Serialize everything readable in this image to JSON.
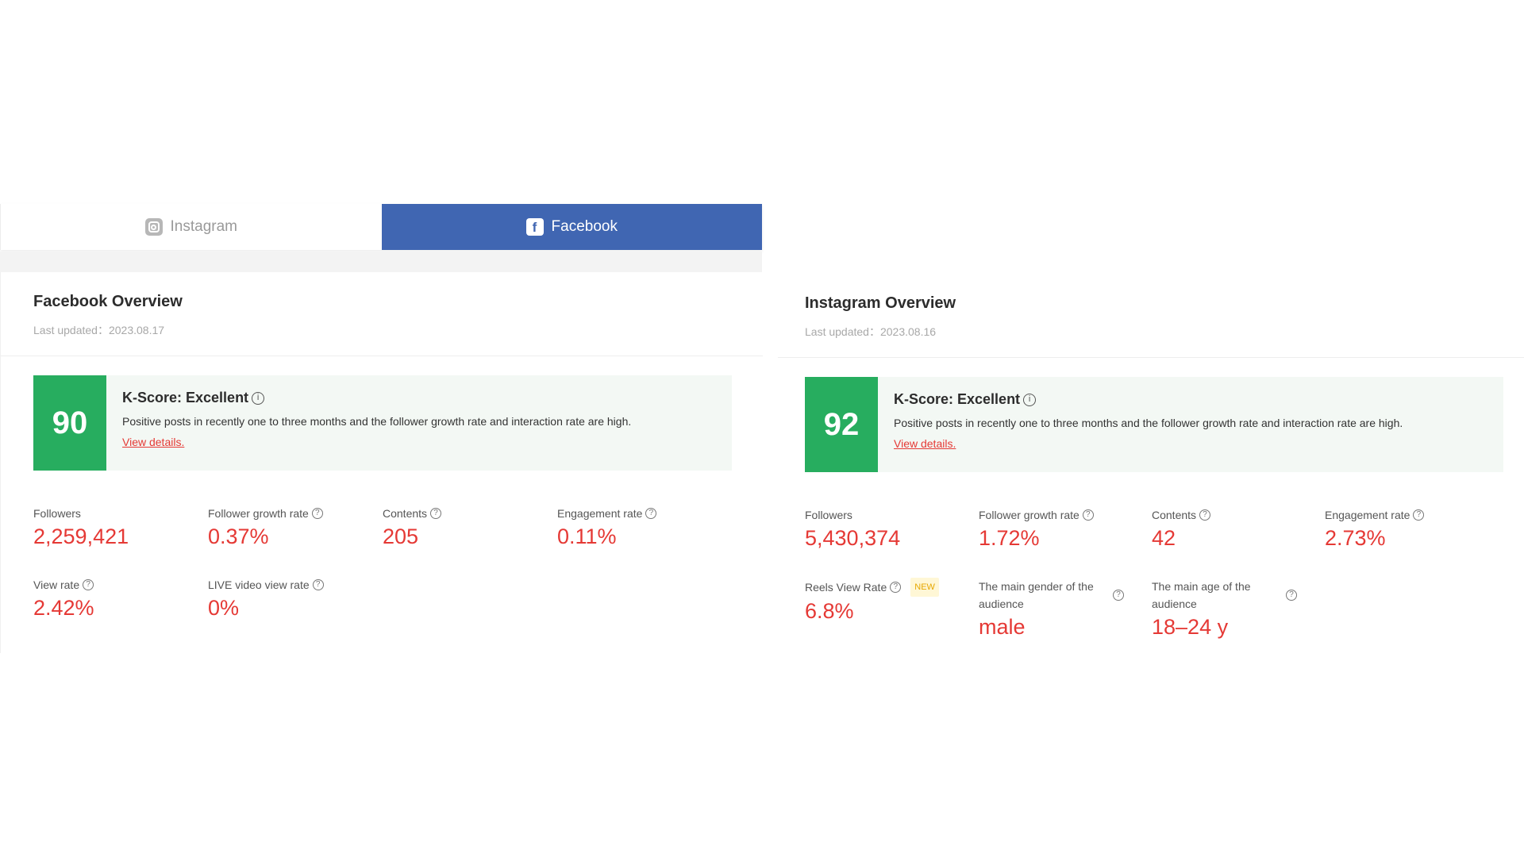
{
  "tabs": {
    "instagram_label": "Instagram",
    "facebook_label": "Facebook",
    "active": "Facebook"
  },
  "facebook": {
    "title": "Facebook Overview",
    "last_updated": "Last updated：2023.08.17",
    "kscore": {
      "value": "90",
      "title": "K-Score: Excellent",
      "description": "Positive posts in recently one to three months and the follower growth rate and interaction rate are high.",
      "link": "View details."
    },
    "metrics": [
      {
        "label": "Followers",
        "value": "2,259,421"
      },
      {
        "label": "Follower growth rate",
        "value": "0.37%"
      },
      {
        "label": "Contents",
        "value": "205"
      },
      {
        "label": "Engagement rate",
        "value": "0.11%"
      },
      {
        "label": "View rate",
        "value": "2.42%"
      },
      {
        "label": "LIVE video view rate",
        "value": "0%"
      }
    ]
  },
  "instagram": {
    "title": "Instagram Overview",
    "last_updated": "Last updated：2023.08.16",
    "kscore": {
      "value": "92",
      "title": "K-Score: Excellent",
      "description": "Positive posts in recently one to three months and the follower growth rate and interaction rate are high.",
      "link": "View details."
    },
    "metrics": [
      {
        "label": "Followers",
        "value": "5,430,374"
      },
      {
        "label": "Follower growth rate",
        "value": "1.72%"
      },
      {
        "label": "Contents",
        "value": "42"
      },
      {
        "label": "Engagement rate",
        "value": "2.73%"
      },
      {
        "label": "Reels View Rate",
        "value": "6.8%",
        "badge": "NEW"
      },
      {
        "label": "The main gender of the audience",
        "value": "male"
      },
      {
        "label": "The main age of the audience",
        "value": "18–24 y"
      }
    ]
  },
  "colors": {
    "facebook_blue": "#4066b2",
    "score_green": "#27ad5f",
    "value_red": "#e53935"
  }
}
